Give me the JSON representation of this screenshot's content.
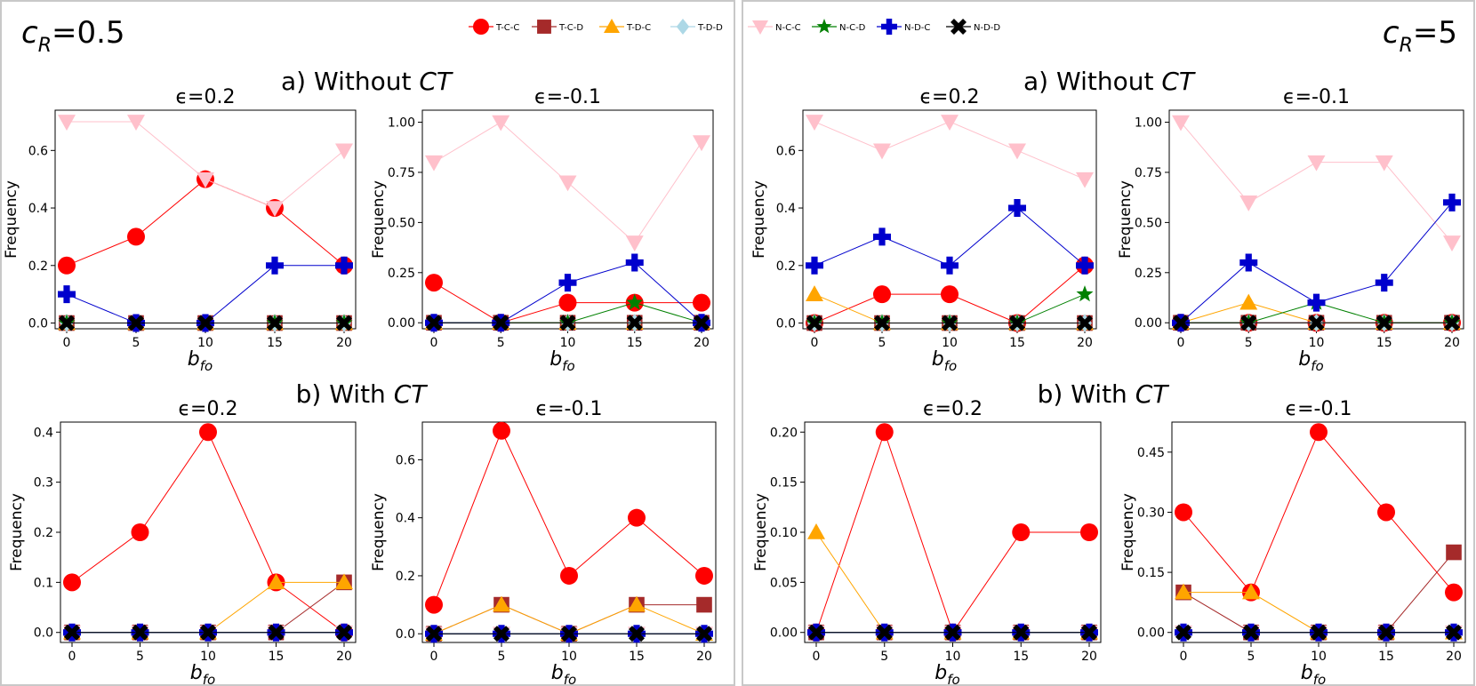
{
  "legend": [
    {
      "label": "T-C-C",
      "marker": "circle",
      "color": "#ff0000"
    },
    {
      "label": "T-C-D",
      "marker": "square",
      "color": "#a52a2a"
    },
    {
      "label": "T-D-C",
      "marker": "triangle-up",
      "color": "#ffa500"
    },
    {
      "label": "T-D-D",
      "marker": "diamond",
      "color": "#add8e6"
    },
    {
      "label": "N-C-C",
      "marker": "triangle-down",
      "color": "#ffc0cb"
    },
    {
      "label": "N-C-D",
      "marker": "star",
      "color": "#008000"
    },
    {
      "label": "N-D-C",
      "marker": "plus",
      "color": "#0000cd"
    },
    {
      "label": "N-D-D",
      "marker": "x",
      "color": "#000000"
    }
  ],
  "panels": [
    {
      "cr_base": "c",
      "cr_sub": "R",
      "cr_value": "=0.5",
      "section_a": "a) Without ",
      "section_b": "b) With ",
      "ct": "CT"
    },
    {
      "cr_base": "c",
      "cr_sub": "R",
      "cr_value": "=5",
      "section_a": "a) Without ",
      "section_b": "b) With ",
      "ct": "CT"
    }
  ],
  "axis_labels": {
    "xlabel_base": "b",
    "xlabel_sub": "fo",
    "ylabel": "Frequency"
  },
  "chart_data": [
    {
      "type": "line",
      "title": "ϵ=0.2",
      "panel": "c_R=0.5",
      "section": "a) Without CT",
      "x": [
        0,
        5,
        10,
        15,
        20
      ],
      "ylim": [
        -0.02,
        0.74
      ],
      "yticks": [
        0.0,
        0.2,
        0.4,
        0.6
      ],
      "ytick_labels": [
        "0.0",
        "0.2",
        "0.4",
        "0.6"
      ],
      "series": [
        {
          "name": "T-C-C",
          "values": [
            0.2,
            0.3,
            0.5,
            0.4,
            0.2
          ]
        },
        {
          "name": "T-C-D",
          "values": [
            0,
            0,
            0,
            0,
            0
          ]
        },
        {
          "name": "T-D-C",
          "values": [
            0,
            0,
            0,
            0,
            0
          ]
        },
        {
          "name": "T-D-D",
          "values": [
            0,
            0,
            0,
            0,
            0
          ]
        },
        {
          "name": "N-C-C",
          "values": [
            0.7,
            0.7,
            0.5,
            0.4,
            0.6
          ]
        },
        {
          "name": "N-C-D",
          "values": [
            0,
            0,
            0,
            0,
            0
          ]
        },
        {
          "name": "N-D-C",
          "values": [
            0.1,
            0,
            0,
            0.2,
            0.2
          ]
        },
        {
          "name": "N-D-D",
          "values": [
            0,
            0,
            0,
            0,
            0
          ]
        }
      ]
    },
    {
      "type": "line",
      "title": "ϵ=-0.1",
      "panel": "c_R=0.5",
      "section": "a) Without CT",
      "x": [
        0,
        5,
        10,
        15,
        20
      ],
      "ylim": [
        -0.03,
        1.06
      ],
      "yticks": [
        0.0,
        0.25,
        0.5,
        0.75,
        1.0
      ],
      "ytick_labels": [
        "0.00",
        "0.25",
        "0.50",
        "0.75",
        "1.00"
      ],
      "series": [
        {
          "name": "T-C-C",
          "values": [
            0.2,
            0,
            0.1,
            0.1,
            0.1
          ]
        },
        {
          "name": "T-C-D",
          "values": [
            0,
            0,
            0,
            0,
            0
          ]
        },
        {
          "name": "T-D-C",
          "values": [
            0,
            0,
            0,
            0,
            0
          ]
        },
        {
          "name": "T-D-D",
          "values": [
            0,
            0,
            0,
            0,
            0
          ]
        },
        {
          "name": "N-C-C",
          "values": [
            0.8,
            1.0,
            0.7,
            0.4,
            0.9
          ]
        },
        {
          "name": "N-C-D",
          "values": [
            0,
            0,
            0,
            0.1,
            0
          ]
        },
        {
          "name": "N-D-C",
          "values": [
            0,
            0,
            0.2,
            0.3,
            0
          ]
        },
        {
          "name": "N-D-D",
          "values": [
            0,
            0,
            0,
            0,
            0
          ]
        }
      ]
    },
    {
      "type": "line",
      "title": "ϵ=0.2",
      "panel": "c_R=0.5",
      "section": "b) With CT",
      "x": [
        0,
        5,
        10,
        15,
        20
      ],
      "ylim": [
        -0.02,
        0.42
      ],
      "yticks": [
        0.0,
        0.1,
        0.2,
        0.3,
        0.4
      ],
      "ytick_labels": [
        "0.0",
        "0.1",
        "0.2",
        "0.3",
        "0.4"
      ],
      "series": [
        {
          "name": "T-C-C",
          "values": [
            0.1,
            0.2,
            0.4,
            0.1,
            0
          ]
        },
        {
          "name": "T-C-D",
          "values": [
            0,
            0,
            0,
            0,
            0.1
          ]
        },
        {
          "name": "T-D-C",
          "values": [
            0,
            0,
            0,
            0.1,
            0.1
          ]
        },
        {
          "name": "T-D-D",
          "values": [
            0,
            0,
            0,
            0,
            0
          ]
        },
        {
          "name": "N-C-C",
          "values": [
            0,
            0,
            0,
            0,
            0
          ]
        },
        {
          "name": "N-C-D",
          "values": [
            0,
            0,
            0,
            0,
            0
          ]
        },
        {
          "name": "N-D-C",
          "values": [
            0,
            0,
            0,
            0,
            0
          ]
        },
        {
          "name": "N-D-D",
          "values": [
            0,
            0,
            0,
            0,
            0
          ]
        }
      ]
    },
    {
      "type": "line",
      "title": "ϵ=-0.1",
      "panel": "c_R=0.5",
      "section": "b) With CT",
      "x": [
        0,
        5,
        10,
        15,
        20
      ],
      "ylim": [
        -0.03,
        0.73
      ],
      "yticks": [
        0.0,
        0.2,
        0.4,
        0.6
      ],
      "ytick_labels": [
        "0.0",
        "0.2",
        "0.4",
        "0.6"
      ],
      "series": [
        {
          "name": "T-C-C",
          "values": [
            0.1,
            0.7,
            0.2,
            0.4,
            0.2
          ]
        },
        {
          "name": "T-C-D",
          "values": [
            0,
            0.1,
            0,
            0.1,
            0.1
          ]
        },
        {
          "name": "T-D-C",
          "values": [
            0,
            0.1,
            0,
            0.1,
            0
          ]
        },
        {
          "name": "T-D-D",
          "values": [
            0,
            0,
            0,
            0,
            0
          ]
        },
        {
          "name": "N-C-C",
          "values": [
            0,
            0,
            0,
            0,
            0
          ]
        },
        {
          "name": "N-C-D",
          "values": [
            0,
            0,
            0,
            0,
            0
          ]
        },
        {
          "name": "N-D-C",
          "values": [
            0,
            0,
            0,
            0,
            0
          ]
        },
        {
          "name": "N-D-D",
          "values": [
            0,
            0,
            0,
            0,
            0
          ]
        }
      ]
    },
    {
      "type": "line",
      "title": "ϵ=0.2",
      "panel": "c_R=5",
      "section": "a) Without CT",
      "x": [
        0,
        5,
        10,
        15,
        20
      ],
      "ylim": [
        -0.02,
        0.74
      ],
      "yticks": [
        0.0,
        0.2,
        0.4,
        0.6
      ],
      "ytick_labels": [
        "0.0",
        "0.2",
        "0.4",
        "0.6"
      ],
      "series": [
        {
          "name": "T-C-C",
          "values": [
            0,
            0.1,
            0.1,
            0,
            0.2
          ]
        },
        {
          "name": "T-C-D",
          "values": [
            0,
            0,
            0,
            0,
            0
          ]
        },
        {
          "name": "T-D-C",
          "values": [
            0.1,
            0,
            0,
            0,
            0
          ]
        },
        {
          "name": "T-D-D",
          "values": [
            0,
            0,
            0,
            0,
            0
          ]
        },
        {
          "name": "N-C-C",
          "values": [
            0.7,
            0.6,
            0.7,
            0.6,
            0.5
          ]
        },
        {
          "name": "N-C-D",
          "values": [
            0,
            0,
            0,
            0,
            0.1
          ]
        },
        {
          "name": "N-D-C",
          "values": [
            0.2,
            0.3,
            0.2,
            0.4,
            0.2
          ]
        },
        {
          "name": "N-D-D",
          "values": [
            0,
            0,
            0,
            0,
            0
          ]
        }
      ]
    },
    {
      "type": "line",
      "title": "ϵ=-0.1",
      "panel": "c_R=5",
      "section": "a) Without CT",
      "x": [
        0,
        5,
        10,
        15,
        20
      ],
      "ylim": [
        -0.03,
        1.06
      ],
      "yticks": [
        0.0,
        0.25,
        0.5,
        0.75,
        1.0
      ],
      "ytick_labels": [
        "0.00",
        "0.25",
        "0.50",
        "0.75",
        "1.00"
      ],
      "series": [
        {
          "name": "T-C-C",
          "values": [
            0,
            0,
            0,
            0,
            0
          ]
        },
        {
          "name": "T-C-D",
          "values": [
            0,
            0,
            0,
            0,
            0
          ]
        },
        {
          "name": "T-D-C",
          "values": [
            0,
            0.1,
            0,
            0,
            0
          ]
        },
        {
          "name": "T-D-D",
          "values": [
            0,
            0,
            0,
            0,
            0
          ]
        },
        {
          "name": "N-C-C",
          "values": [
            1.0,
            0.6,
            0.8,
            0.8,
            0.4
          ]
        },
        {
          "name": "N-C-D",
          "values": [
            0,
            0,
            0.1,
            0,
            0
          ]
        },
        {
          "name": "N-D-C",
          "values": [
            0,
            0.3,
            0.1,
            0.2,
            0.6
          ]
        },
        {
          "name": "N-D-D",
          "values": [
            0,
            0,
            0,
            0,
            0
          ]
        }
      ]
    },
    {
      "type": "line",
      "title": "ϵ=0.2",
      "panel": "c_R=5",
      "section": "b) With CT",
      "x": [
        0,
        5,
        10,
        15,
        20
      ],
      "ylim": [
        -0.01,
        0.21
      ],
      "yticks": [
        0.0,
        0.05,
        0.1,
        0.15,
        0.2
      ],
      "ytick_labels": [
        "0.00",
        "0.05",
        "0.10",
        "0.15",
        "0.20"
      ],
      "series": [
        {
          "name": "T-C-C",
          "values": [
            0,
            0.2,
            0,
            0.1,
            0.1
          ]
        },
        {
          "name": "T-C-D",
          "values": [
            0,
            0,
            0,
            0,
            0
          ]
        },
        {
          "name": "T-D-C",
          "values": [
            0.1,
            0,
            0,
            0,
            0
          ]
        },
        {
          "name": "T-D-D",
          "values": [
            0,
            0,
            0,
            0,
            0
          ]
        },
        {
          "name": "N-C-C",
          "values": [
            0,
            0,
            0,
            0,
            0
          ]
        },
        {
          "name": "N-C-D",
          "values": [
            0,
            0,
            0,
            0,
            0
          ]
        },
        {
          "name": "N-D-C",
          "values": [
            0,
            0,
            0,
            0,
            0
          ]
        },
        {
          "name": "N-D-D",
          "values": [
            0,
            0,
            0,
            0,
            0
          ]
        }
      ]
    },
    {
      "type": "line",
      "title": "ϵ=-0.1",
      "panel": "c_R=5",
      "section": "b) With CT",
      "x": [
        0,
        5,
        10,
        15,
        20
      ],
      "ylim": [
        -0.025,
        0.525
      ],
      "yticks": [
        0.0,
        0.15,
        0.3,
        0.45
      ],
      "ytick_labels": [
        "0.00",
        "0.15",
        "0.30",
        "0.45"
      ],
      "series": [
        {
          "name": "T-C-C",
          "values": [
            0.3,
            0.1,
            0.5,
            0.3,
            0.1
          ]
        },
        {
          "name": "T-C-D",
          "values": [
            0.1,
            0,
            0,
            0,
            0.2
          ]
        },
        {
          "name": "T-D-C",
          "values": [
            0.1,
            0.1,
            0,
            0,
            0
          ]
        },
        {
          "name": "T-D-D",
          "values": [
            0,
            0,
            0,
            0,
            0
          ]
        },
        {
          "name": "N-C-C",
          "values": [
            0,
            0,
            0,
            0,
            0
          ]
        },
        {
          "name": "N-C-D",
          "values": [
            0,
            0,
            0,
            0,
            0
          ]
        },
        {
          "name": "N-D-C",
          "values": [
            0,
            0,
            0,
            0,
            0
          ]
        },
        {
          "name": "N-D-D",
          "values": [
            0,
            0,
            0,
            0,
            0
          ]
        }
      ]
    }
  ]
}
